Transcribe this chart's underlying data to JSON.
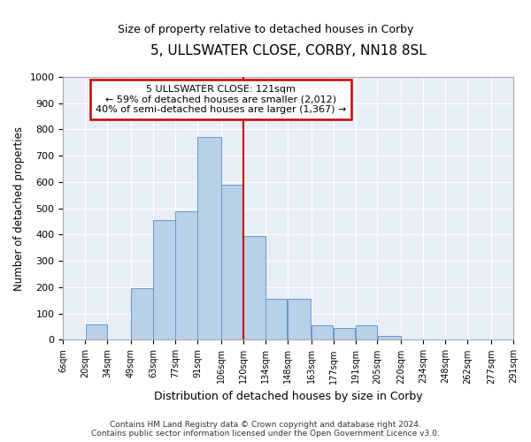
{
  "title": "5, ULLSWATER CLOSE, CORBY, NN18 8SL",
  "subtitle": "Size of property relative to detached houses in Corby",
  "xlabel": "Distribution of detached houses by size in Corby",
  "ylabel": "Number of detached properties",
  "footer_line1": "Contains HM Land Registry data © Crown copyright and database right 2024.",
  "footer_line2": "Contains public sector information licensed under the Open Government Licence v3.0.",
  "annotation_line1": "5 ULLSWATER CLOSE: 121sqm",
  "annotation_line2": "← 59% of detached houses are smaller (2,012)",
  "annotation_line3": "40% of semi-detached houses are larger (1,367) →",
  "bar_color": "#b8d0e8",
  "bar_edge_color": "#6699cc",
  "ref_line_color": "#cc0000",
  "ref_line_x": 120,
  "background_color": "#e8eef7",
  "ylim": [
    0,
    1000
  ],
  "yticks": [
    0,
    100,
    200,
    300,
    400,
    500,
    600,
    700,
    800,
    900,
    1000
  ],
  "bins": [
    6,
    20,
    34,
    49,
    63,
    77,
    91,
    106,
    120,
    134,
    148,
    163,
    177,
    191,
    205,
    220,
    234,
    248,
    262,
    277,
    291
  ],
  "bar_heights": [
    0,
    60,
    0,
    195,
    455,
    490,
    770,
    590,
    395,
    155,
    155,
    55,
    45,
    55,
    15,
    0,
    0,
    0,
    0,
    0
  ],
  "tick_labels": [
    "6sqm",
    "20sqm",
    "34sqm",
    "49sqm",
    "63sqm",
    "77sqm",
    "91sqm",
    "106sqm",
    "120sqm",
    "134sqm",
    "148sqm",
    "163sqm",
    "177sqm",
    "191sqm",
    "205sqm",
    "220sqm",
    "234sqm",
    "248sqm",
    "262sqm",
    "277sqm",
    "291sqm"
  ],
  "figsize": [
    6.0,
    5.0
  ],
  "dpi": 100
}
